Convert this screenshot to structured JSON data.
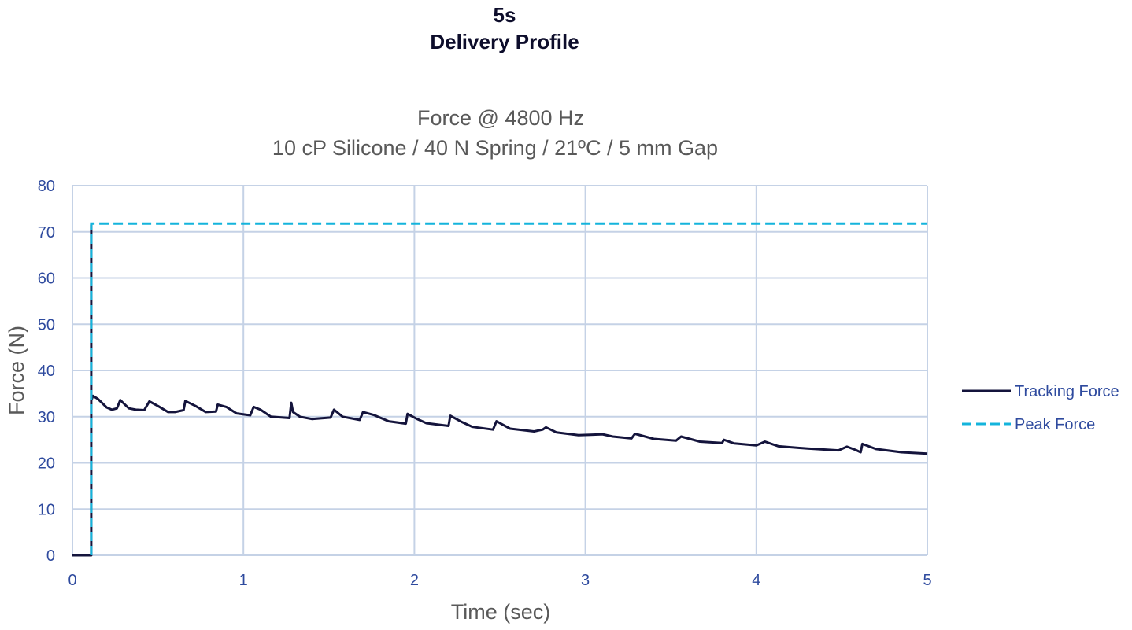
{
  "page": {
    "header_line1": "5s",
    "header_line2": "Delivery Profile"
  },
  "chart_data": {
    "type": "line",
    "title": "Force @ 4800 Hz",
    "subtitle": "10 cP Silicone / 40 N Spring / 21ºC / 5 mm Gap",
    "xlabel": "Time (sec)",
    "ylabel": "Force (N)",
    "xlim": [
      0,
      5
    ],
    "ylim": [
      0,
      80
    ],
    "xticks": [
      0,
      1,
      2,
      3,
      4,
      5
    ],
    "yticks": [
      0,
      10,
      20,
      30,
      40,
      50,
      60,
      70,
      80
    ],
    "grid": true,
    "legend_position": "right",
    "colors": {
      "tracking": "#14143c",
      "peak": "#14b4dc",
      "grid": "#c5d2e6",
      "tick_text": "#2e4a9e",
      "title_text": "#595959"
    },
    "series": [
      {
        "name": "Tracking Force",
        "style": "solid",
        "x": [
          0.0,
          0.1,
          0.11,
          0.11,
          0.11,
          0.12,
          0.15,
          0.2,
          0.23,
          0.26,
          0.28,
          0.29,
          0.33,
          0.37,
          0.42,
          0.45,
          0.46,
          0.5,
          0.56,
          0.6,
          0.65,
          0.66,
          0.72,
          0.78,
          0.84,
          0.85,
          0.9,
          0.96,
          1.04,
          1.06,
          1.1,
          1.16,
          1.27,
          1.28,
          1.29,
          1.33,
          1.4,
          1.51,
          1.53,
          1.58,
          1.68,
          1.7,
          1.76,
          1.85,
          1.95,
          1.96,
          2.01,
          2.07,
          2.2,
          2.21,
          2.28,
          2.34,
          2.46,
          2.48,
          2.56,
          2.7,
          2.75,
          2.77,
          2.83,
          2.96,
          3.03,
          3.1,
          3.16,
          3.27,
          3.29,
          3.4,
          3.53,
          3.56,
          3.67,
          3.8,
          3.81,
          3.87,
          4.0,
          4.05,
          4.13,
          4.3,
          4.48,
          4.53,
          4.58,
          4.61,
          4.62,
          4.7,
          4.85,
          5.0
        ],
        "y": [
          0.0,
          0.0,
          0.0,
          71.5,
          33.5,
          34.5,
          33.8,
          32.0,
          31.5,
          31.8,
          33.6,
          33.2,
          31.8,
          31.5,
          31.4,
          33.3,
          33.1,
          32.3,
          31.0,
          31.0,
          31.4,
          33.4,
          32.3,
          31.0,
          31.1,
          32.6,
          32.1,
          30.7,
          30.3,
          32.1,
          31.5,
          30.0,
          29.7,
          33.0,
          31.0,
          30.0,
          29.5,
          29.8,
          31.5,
          30.0,
          29.3,
          31.0,
          30.4,
          29.0,
          28.5,
          30.6,
          29.6,
          28.6,
          28.0,
          30.2,
          28.8,
          27.8,
          27.2,
          29.0,
          27.4,
          26.8,
          27.2,
          27.7,
          26.6,
          26.0,
          26.1,
          26.2,
          25.7,
          25.3,
          26.3,
          25.2,
          24.8,
          25.7,
          24.6,
          24.3,
          25.0,
          24.2,
          23.8,
          24.6,
          23.6,
          23.1,
          22.7,
          23.5,
          22.8,
          22.3,
          24.1,
          23.0,
          22.3,
          22.0
        ]
      },
      {
        "name": "Peak Force",
        "style": "dashed",
        "x": [
          0.11,
          0.11,
          5.0
        ],
        "y": [
          0.0,
          71.8,
          71.8
        ]
      }
    ]
  }
}
